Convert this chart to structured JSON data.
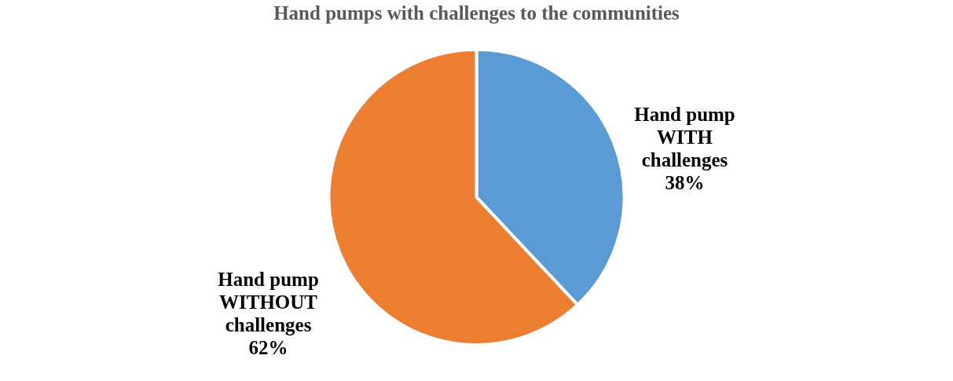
{
  "chart_data": {
    "type": "pie",
    "title": "Hand pumps with challenges to the communities",
    "categories": [
      "Hand pump WITH challenges",
      "Hand pump WITHOUT challenges"
    ],
    "values": [
      38,
      62
    ],
    "colors": [
      "#5b9bd5",
      "#ed7d31"
    ],
    "value_labels": [
      "38%",
      "62%"
    ],
    "legend": false
  }
}
